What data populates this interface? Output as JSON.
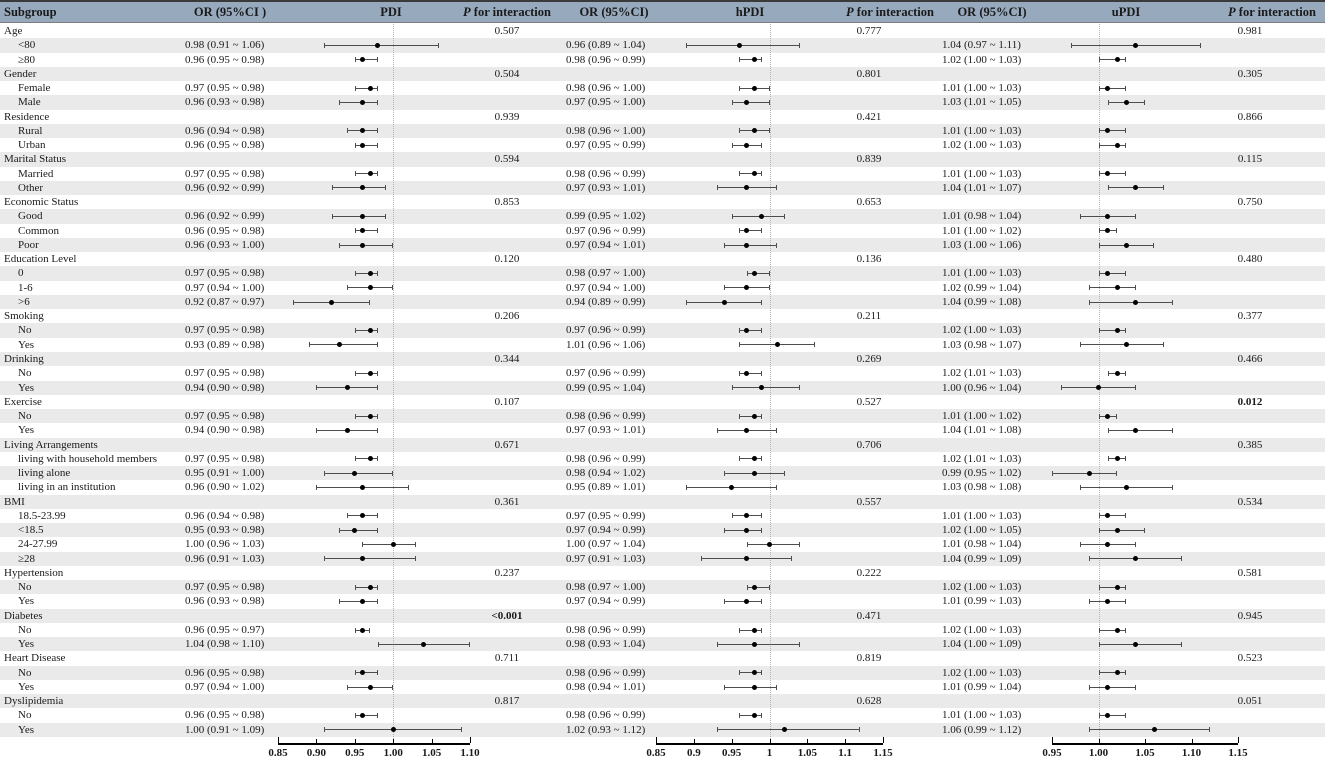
{
  "header": {
    "subgroup": "Subgroup",
    "or_pdi": "OR (95%CI )",
    "pdi": "PDI",
    "p1": "P for interaction",
    "or_hpdi": "OR (95%CI)",
    "hpdi": "hPDI",
    "p2": "P for interaction",
    "or_updi": "OR (95%CI)",
    "updi": "uPDI",
    "p3": "P for interaction"
  },
  "colors": {
    "header_bg": "#97a9bd",
    "stripe": "#eaeaea",
    "dot": "#000000",
    "ci_line": "#4d4d4d",
    "reference_line": "#b3b3b3"
  },
  "chart_data": {
    "type": "forest",
    "panels": [
      {
        "name": "PDI",
        "xmin": 0.85,
        "xmax": 1.1,
        "ref": 1.0,
        "ticks": [
          0.85,
          0.9,
          0.95,
          1.0,
          1.05,
          1.1
        ],
        "tick_labels": [
          "0.85",
          "0.90",
          "0.95",
          "1.00",
          "1.05",
          "1.10"
        ]
      },
      {
        "name": "hPDI",
        "xmin": 0.85,
        "xmax": 1.15,
        "ref": 1.0,
        "ticks": [
          0.85,
          0.9,
          0.95,
          1.0,
          1.05,
          1.1,
          1.15
        ],
        "tick_labels": [
          "0.85",
          "0.9",
          "0.95",
          "1",
          "1.05",
          "1.1",
          "1.15"
        ]
      },
      {
        "name": "uPDI",
        "xmin": 0.95,
        "xmax": 1.15,
        "ref": 1.0,
        "ticks": [
          0.95,
          1.0,
          1.05,
          1.1,
          1.15
        ],
        "tick_labels": [
          "0.95",
          "1.00",
          "1.05",
          "1.10",
          "1.15"
        ]
      }
    ],
    "rows": [
      {
        "label": "Age",
        "group": true,
        "p": [
          "0.507",
          "0.777",
          "0.981"
        ]
      },
      {
        "label": "<80",
        "est": [
          [
            "0.98 (0.91 ~ 1.06)",
            0.98,
            0.91,
            1.06
          ],
          [
            "0.96 (0.89 ~ 1.04)",
            0.96,
            0.89,
            1.04
          ],
          [
            "1.04 (0.97 ~ 1.11)",
            1.04,
            0.97,
            1.11
          ]
        ]
      },
      {
        "label": "≥80",
        "est": [
          [
            "0.96 (0.95 ~ 0.98)",
            0.96,
            0.95,
            0.98
          ],
          [
            "0.98 (0.96 ~ 0.99)",
            0.98,
            0.96,
            0.99
          ],
          [
            "1.02 (1.00 ~ 1.03)",
            1.02,
            1.0,
            1.03
          ]
        ]
      },
      {
        "label": "Gender",
        "group": true,
        "p": [
          "0.504",
          "0.801",
          "0.305"
        ]
      },
      {
        "label": "Female",
        "est": [
          [
            "0.97 (0.95 ~ 0.98)",
            0.97,
            0.95,
            0.98
          ],
          [
            "0.98 (0.96 ~ 1.00)",
            0.98,
            0.96,
            1.0
          ],
          [
            "1.01 (1.00 ~ 1.03)",
            1.01,
            1.0,
            1.03
          ]
        ]
      },
      {
        "label": "Male",
        "est": [
          [
            "0.96 (0.93 ~ 0.98)",
            0.96,
            0.93,
            0.98
          ],
          [
            "0.97 (0.95 ~ 1.00)",
            0.97,
            0.95,
            1.0
          ],
          [
            "1.03 (1.01 ~ 1.05)",
            1.03,
            1.01,
            1.05
          ]
        ]
      },
      {
        "label": "Residence",
        "group": true,
        "p": [
          "0.939",
          "0.421",
          "0.866"
        ]
      },
      {
        "label": "Rural",
        "est": [
          [
            "0.96 (0.94 ~ 0.98)",
            0.96,
            0.94,
            0.98
          ],
          [
            "0.98 (0.96 ~ 1.00)",
            0.98,
            0.96,
            1.0
          ],
          [
            "1.01 (1.00 ~ 1.03)",
            1.01,
            1.0,
            1.03
          ]
        ]
      },
      {
        "label": "Urban",
        "est": [
          [
            "0.96 (0.95 ~ 0.98)",
            0.96,
            0.95,
            0.98
          ],
          [
            "0.97 (0.95 ~ 0.99)",
            0.97,
            0.95,
            0.99
          ],
          [
            "1.02 (1.00 ~ 1.03)",
            1.02,
            1.0,
            1.03
          ]
        ]
      },
      {
        "label": "Marital Status",
        "group": true,
        "p": [
          "0.594",
          "0.839",
          "0.115"
        ]
      },
      {
        "label": "Married",
        "est": [
          [
            "0.97 (0.95 ~ 0.98)",
            0.97,
            0.95,
            0.98
          ],
          [
            "0.98 (0.96 ~ 0.99)",
            0.98,
            0.96,
            0.99
          ],
          [
            "1.01 (1.00 ~ 1.03)",
            1.01,
            1.0,
            1.03
          ]
        ]
      },
      {
        "label": "Other",
        "est": [
          [
            "0.96 (0.92 ~ 0.99)",
            0.96,
            0.92,
            0.99
          ],
          [
            "0.97 (0.93 ~ 1.01)",
            0.97,
            0.93,
            1.01
          ],
          [
            "1.04 (1.01 ~ 1.07)",
            1.04,
            1.01,
            1.07
          ]
        ]
      },
      {
        "label": "Economic Status",
        "group": true,
        "p": [
          "0.853",
          "0.653",
          "0.750"
        ]
      },
      {
        "label": "Good",
        "est": [
          [
            "0.96 (0.92 ~ 0.99)",
            0.96,
            0.92,
            0.99
          ],
          [
            "0.99 (0.95 ~ 1.02)",
            0.99,
            0.95,
            1.02
          ],
          [
            "1.01 (0.98 ~ 1.04)",
            1.01,
            0.98,
            1.04
          ]
        ]
      },
      {
        "label": "Common",
        "est": [
          [
            "0.96 (0.95 ~ 0.98)",
            0.96,
            0.95,
            0.98
          ],
          [
            "0.97 (0.96 ~ 0.99)",
            0.97,
            0.96,
            0.99
          ],
          [
            "1.01 (1.00 ~ 1.02)",
            1.01,
            1.0,
            1.02
          ]
        ]
      },
      {
        "label": "Poor",
        "est": [
          [
            "0.96 (0.93 ~ 1.00)",
            0.96,
            0.93,
            1.0
          ],
          [
            "0.97 (0.94 ~ 1.01)",
            0.97,
            0.94,
            1.01
          ],
          [
            "1.03 (1.00 ~ 1.06)",
            1.03,
            1.0,
            1.06
          ]
        ]
      },
      {
        "label": "Education Level",
        "group": true,
        "p": [
          "0.120",
          "0.136",
          "0.480"
        ]
      },
      {
        "label": "0",
        "est": [
          [
            "0.97 (0.95 ~ 0.98)",
            0.97,
            0.95,
            0.98
          ],
          [
            "0.98 (0.97 ~ 1.00)",
            0.98,
            0.97,
            1.0
          ],
          [
            "1.01 (1.00 ~ 1.03)",
            1.01,
            1.0,
            1.03
          ]
        ]
      },
      {
        "label": "1-6",
        "est": [
          [
            "0.97 (0.94 ~ 1.00)",
            0.97,
            0.94,
            1.0
          ],
          [
            "0.97 (0.94 ~ 1.00)",
            0.97,
            0.94,
            1.0
          ],
          [
            "1.02 (0.99 ~ 1.04)",
            1.02,
            0.99,
            1.04
          ]
        ]
      },
      {
        "label": ">6",
        "est": [
          [
            "0.92 (0.87 ~ 0.97)",
            0.92,
            0.87,
            0.97
          ],
          [
            "0.94 (0.89 ~ 0.99)",
            0.94,
            0.89,
            0.99
          ],
          [
            "1.04 (0.99 ~ 1.08)",
            1.04,
            0.99,
            1.08
          ]
        ]
      },
      {
        "label": "Smoking",
        "group": true,
        "p": [
          "0.206",
          "0.211",
          "0.377"
        ]
      },
      {
        "label": "No",
        "est": [
          [
            "0.97 (0.95 ~ 0.98)",
            0.97,
            0.95,
            0.98
          ],
          [
            "0.97 (0.96 ~ 0.99)",
            0.97,
            0.96,
            0.99
          ],
          [
            "1.02 (1.00 ~ 1.03)",
            1.02,
            1.0,
            1.03
          ]
        ]
      },
      {
        "label": "Yes",
        "est": [
          [
            "0.93 (0.89 ~ 0.98)",
            0.93,
            0.89,
            0.98
          ],
          [
            "1.01 (0.96 ~ 1.06)",
            1.01,
            0.96,
            1.06
          ],
          [
            "1.03 (0.98 ~ 1.07)",
            1.03,
            0.98,
            1.07
          ]
        ]
      },
      {
        "label": "Drinking",
        "group": true,
        "p": [
          "0.344",
          "0.269",
          "0.466"
        ]
      },
      {
        "label": "No",
        "est": [
          [
            "0.97 (0.95 ~ 0.98)",
            0.97,
            0.95,
            0.98
          ],
          [
            "0.97 (0.96 ~ 0.99)",
            0.97,
            0.96,
            0.99
          ],
          [
            "1.02 (1.01 ~ 1.03)",
            1.02,
            1.01,
            1.03
          ]
        ]
      },
      {
        "label": "Yes",
        "est": [
          [
            "0.94 (0.90 ~ 0.98)",
            0.94,
            0.9,
            0.98
          ],
          [
            "0.99 (0.95 ~ 1.04)",
            0.99,
            0.95,
            1.04
          ],
          [
            "1.00 (0.96 ~ 1.04)",
            1.0,
            0.96,
            1.04
          ]
        ]
      },
      {
        "label": "Exercise",
        "group": true,
        "p": [
          "0.107",
          "0.527",
          "0.012"
        ],
        "p_bold": [
          false,
          false,
          true
        ]
      },
      {
        "label": "No",
        "est": [
          [
            "0.97 (0.95 ~ 0.98)",
            0.97,
            0.95,
            0.98
          ],
          [
            "0.98 (0.96 ~ 0.99)",
            0.98,
            0.96,
            0.99
          ],
          [
            "1.01 (1.00 ~ 1.02)",
            1.01,
            1.0,
            1.02
          ]
        ]
      },
      {
        "label": "Yes",
        "est": [
          [
            "0.94 (0.90 ~ 0.98)",
            0.94,
            0.9,
            0.98
          ],
          [
            "0.97 (0.93 ~ 1.01)",
            0.97,
            0.93,
            1.01
          ],
          [
            "1.04 (1.01 ~ 1.08)",
            1.04,
            1.01,
            1.08
          ]
        ]
      },
      {
        "label": "Living Arrangements",
        "group": true,
        "p": [
          "0.671",
          "0.706",
          "0.385"
        ]
      },
      {
        "label": "living with household members",
        "est": [
          [
            "0.97 (0.95 ~ 0.98)",
            0.97,
            0.95,
            0.98
          ],
          [
            "0.98 (0.96 ~ 0.99)",
            0.98,
            0.96,
            0.99
          ],
          [
            "1.02 (1.01 ~ 1.03)",
            1.02,
            1.01,
            1.03
          ]
        ]
      },
      {
        "label": "living alone",
        "est": [
          [
            "0.95 (0.91 ~ 1.00)",
            0.95,
            0.91,
            1.0
          ],
          [
            "0.98 (0.94 ~ 1.02)",
            0.98,
            0.94,
            1.02
          ],
          [
            "0.99 (0.95 ~ 1.02)",
            0.99,
            0.95,
            1.02
          ]
        ]
      },
      {
        "label": "living in an institution",
        "est": [
          [
            "0.96 (0.90 ~ 1.02)",
            0.96,
            0.9,
            1.02
          ],
          [
            "0.95 (0.89 ~ 1.01)",
            0.95,
            0.89,
            1.01
          ],
          [
            "1.03 (0.98 ~ 1.08)",
            1.03,
            0.98,
            1.08
          ]
        ]
      },
      {
        "label": "BMI",
        "group": true,
        "p": [
          "0.361",
          "0.557",
          "0.534"
        ]
      },
      {
        "label": "18.5-23.99",
        "est": [
          [
            "0.96 (0.94 ~ 0.98)",
            0.96,
            0.94,
            0.98
          ],
          [
            "0.97 (0.95 ~ 0.99)",
            0.97,
            0.95,
            0.99
          ],
          [
            "1.01 (1.00 ~ 1.03)",
            1.01,
            1.0,
            1.03
          ]
        ]
      },
      {
        "label": "<18.5",
        "est": [
          [
            "0.95 (0.93 ~ 0.98)",
            0.95,
            0.93,
            0.98
          ],
          [
            "0.97 (0.94 ~ 0.99)",
            0.97,
            0.94,
            0.99
          ],
          [
            "1.02 (1.00 ~ 1.05)",
            1.02,
            1.0,
            1.05
          ]
        ]
      },
      {
        "label": "24-27.99",
        "est": [
          [
            "1.00 (0.96 ~ 1.03)",
            1.0,
            0.96,
            1.03
          ],
          [
            "1.00 (0.97 ~ 1.04)",
            1.0,
            0.97,
            1.04
          ],
          [
            "1.01 (0.98 ~ 1.04)",
            1.01,
            0.98,
            1.04
          ]
        ]
      },
      {
        "label": "≥28",
        "est": [
          [
            "0.96 (0.91 ~ 1.03)",
            0.96,
            0.91,
            1.03
          ],
          [
            "0.97 (0.91 ~ 1.03)",
            0.97,
            0.91,
            1.03
          ],
          [
            "1.04 (0.99 ~ 1.09)",
            1.04,
            0.99,
            1.09
          ]
        ]
      },
      {
        "label": "Hypertension",
        "group": true,
        "p": [
          "0.237",
          "0.222",
          "0.581"
        ]
      },
      {
        "label": "No",
        "est": [
          [
            "0.97 (0.95 ~ 0.98)",
            0.97,
            0.95,
            0.98
          ],
          [
            "0.98 (0.97 ~ 1.00)",
            0.98,
            0.97,
            1.0
          ],
          [
            "1.02 (1.00 ~ 1.03)",
            1.02,
            1.0,
            1.03
          ]
        ]
      },
      {
        "label": "Yes",
        "est": [
          [
            "0.96 (0.93 ~ 0.98)",
            0.96,
            0.93,
            0.98
          ],
          [
            "0.97 (0.94 ~ 0.99)",
            0.97,
            0.94,
            0.99
          ],
          [
            "1.01 (0.99 ~ 1.03)",
            1.01,
            0.99,
            1.03
          ]
        ]
      },
      {
        "label": "Diabetes",
        "group": true,
        "p": [
          "<0.001",
          "0.471",
          "0.945"
        ],
        "p_bold": [
          true,
          false,
          false
        ]
      },
      {
        "label": "No",
        "est": [
          [
            "0.96 (0.95 ~ 0.97)",
            0.96,
            0.95,
            0.97
          ],
          [
            "0.98 (0.96 ~ 0.99)",
            0.98,
            0.96,
            0.99
          ],
          [
            "1.02 (1.00 ~ 1.03)",
            1.02,
            1.0,
            1.03
          ]
        ]
      },
      {
        "label": "Yes",
        "est": [
          [
            "1.04 (0.98 ~ 1.10)",
            1.04,
            0.98,
            1.1
          ],
          [
            "0.98 (0.93 ~ 1.04)",
            0.98,
            0.93,
            1.04
          ],
          [
            "1.04 (1.00 ~ 1.09)",
            1.04,
            1.0,
            1.09
          ]
        ]
      },
      {
        "label": "Heart Disease",
        "group": true,
        "p": [
          "0.711",
          "0.819",
          "0.523"
        ]
      },
      {
        "label": "No",
        "est": [
          [
            "0.96 (0.95 ~ 0.98)",
            0.96,
            0.95,
            0.98
          ],
          [
            "0.98 (0.96 ~ 0.99)",
            0.98,
            0.96,
            0.99
          ],
          [
            "1.02 (1.00 ~ 1.03)",
            1.02,
            1.0,
            1.03
          ]
        ]
      },
      {
        "label": "Yes",
        "est": [
          [
            "0.97 (0.94 ~ 1.00)",
            0.97,
            0.94,
            1.0
          ],
          [
            "0.98 (0.94 ~ 1.01)",
            0.98,
            0.94,
            1.01
          ],
          [
            "1.01 (0.99 ~ 1.04)",
            1.01,
            0.99,
            1.04
          ]
        ]
      },
      {
        "label": "Dyslipidemia",
        "group": true,
        "p": [
          "0.817",
          "0.628",
          "0.051"
        ]
      },
      {
        "label": "No",
        "est": [
          [
            "0.96 (0.95 ~ 0.98)",
            0.96,
            0.95,
            0.98
          ],
          [
            "0.98 (0.96 ~ 0.99)",
            0.98,
            0.96,
            0.99
          ],
          [
            "1.01 (1.00 ~ 1.03)",
            1.01,
            1.0,
            1.03
          ]
        ]
      },
      {
        "label": "Yes",
        "est": [
          [
            "1.00 (0.91 ~ 1.09)",
            1.0,
            0.91,
            1.09
          ],
          [
            "1.02 (0.93 ~ 1.12)",
            1.02,
            0.93,
            1.12
          ],
          [
            "1.06 (0.99 ~ 1.12)",
            1.06,
            0.99,
            1.12
          ]
        ]
      }
    ]
  }
}
